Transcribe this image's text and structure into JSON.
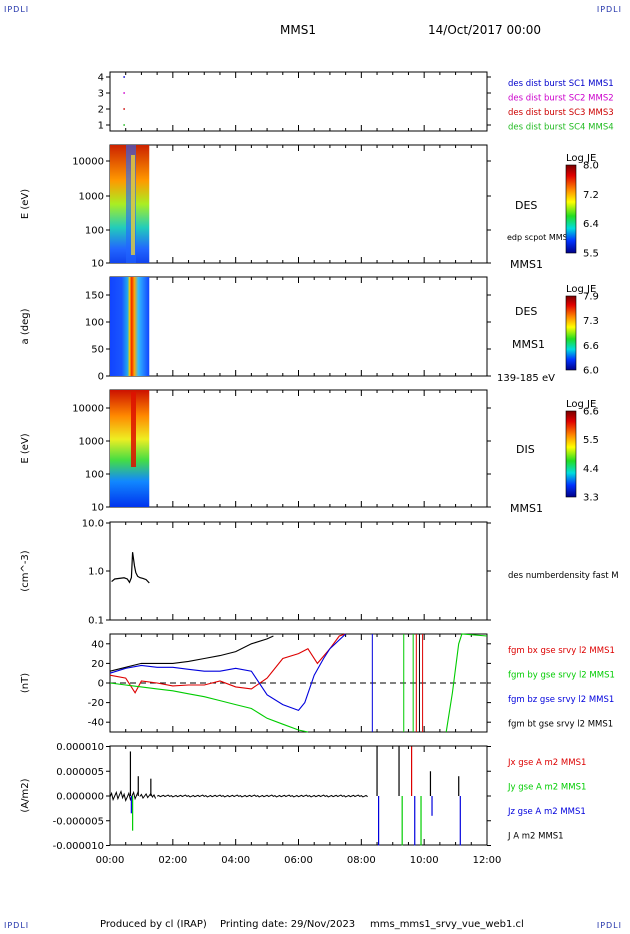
{
  "header": {
    "corner_tl": "IPDLI",
    "corner_tr": "IPDLI",
    "spacecraft": "MMS1",
    "date": "14/Oct/2017 00:00"
  },
  "footer": {
    "produced": "Produced by cl (IRAP)",
    "printing": "Printing date: 29/Nov/2023",
    "file": "mms_mms1_srvy_vue_web1.cl",
    "corner_bl": "IPDLI",
    "corner_br": "IPDLI"
  },
  "chart_data": [
    {
      "type": "scatter",
      "panel": "availability",
      "yticks": [
        "1",
        "2",
        "3",
        "4"
      ],
      "series": [
        {
          "name": "des dist burst SC1 MMS1",
          "color": "#0000cc",
          "x_hours": [
            0.45
          ],
          "y": [
            4
          ]
        },
        {
          "name": "des dist burst SC2 MMS2",
          "color": "#cc00cc",
          "x_hours": [
            0.45
          ],
          "y": [
            3
          ]
        },
        {
          "name": "des dist burst SC3 MMS3",
          "color": "#cc0000",
          "x_hours": [
            0.45
          ],
          "y": [
            2
          ]
        },
        {
          "name": "des dist burst SC4 MMS4",
          "color": "#22bb22",
          "x_hours": [
            0.45
          ],
          "y": [
            1
          ]
        }
      ]
    },
    {
      "type": "heatmap",
      "panel": "des-energy",
      "ylabel": "E (eV)",
      "yticks": [
        "10000",
        "1000",
        "100",
        "10"
      ],
      "right_labels": [
        "DES",
        "edp scpot MMS1",
        "MMS1"
      ],
      "colorbar": {
        "title": "Log JE",
        "ticks": [
          "8.0",
          "7.2",
          "6.4",
          "5.5"
        ]
      },
      "data_span_hours": [
        0.0,
        1.25
      ]
    },
    {
      "type": "heatmap",
      "panel": "des-pitch",
      "ylabel": "a (deg)",
      "yticks": [
        "150",
        "100",
        "50",
        "0"
      ],
      "right_labels": [
        "DES",
        "MMS1",
        "139-185 eV"
      ],
      "colorbar": {
        "title": "Log JE",
        "ticks": [
          "7.9",
          "7.3",
          "6.6",
          "6.0"
        ]
      },
      "data_span_hours": [
        0.0,
        1.25
      ]
    },
    {
      "type": "heatmap",
      "panel": "dis-energy",
      "ylabel": "E (eV)",
      "yticks": [
        "10000",
        "1000",
        "100",
        "10"
      ],
      "right_labels": [
        "DIS",
        "MMS1"
      ],
      "colorbar": {
        "title": "Log JE",
        "ticks": [
          "6.6",
          "5.5",
          "4.4",
          "3.3"
        ]
      },
      "data_span_hours": [
        0.0,
        1.25
      ]
    },
    {
      "type": "line",
      "panel": "density",
      "ylabel": "(cm^-3)",
      "yticks": [
        "10.0",
        "1.0",
        "0.1"
      ],
      "series": [
        {
          "name": "des numberdensity fast M",
          "color": "#000000",
          "x_hours": [
            0.05,
            0.15,
            0.3,
            0.45,
            0.55,
            0.62,
            0.68,
            0.72,
            0.78,
            0.82,
            0.88,
            0.95,
            1.05,
            1.15,
            1.25
          ],
          "y": [
            0.62,
            0.7,
            0.72,
            0.74,
            0.7,
            0.6,
            0.75,
            2.5,
            1.3,
            0.95,
            0.8,
            0.75,
            0.72,
            0.68,
            0.58
          ]
        }
      ]
    },
    {
      "type": "line",
      "panel": "fgm",
      "ylabel": "(nT)",
      "yticks": [
        "40",
        "20",
        "0",
        "-20",
        "-40"
      ],
      "ylim": [
        -50,
        50
      ],
      "series": [
        {
          "name": "fgm bx gse srvy l2 MMS1",
          "color": "#dd0000",
          "x_hours": [
            0,
            0.5,
            0.8,
            1,
            1.5,
            2,
            2.5,
            3,
            3.5,
            4,
            4.5,
            5,
            5.5,
            6,
            6.3,
            6.6,
            7,
            7.3,
            7.5
          ],
          "y": [
            8,
            5,
            -10,
            2,
            0,
            -3,
            -2,
            -2,
            2,
            -4,
            -6,
            5,
            25,
            30,
            35,
            20,
            35,
            48,
            50
          ]
        },
        {
          "name": "fgm by gse srvy l2 MMS1",
          "color": "#00cc00",
          "x_hours": [
            0,
            0.5,
            1,
            1.5,
            2,
            2.5,
            3,
            3.5,
            4,
            4.5,
            4.8,
            5,
            5.5,
            6,
            6.3
          ],
          "y": [
            0,
            -2,
            -4,
            -6,
            -8,
            -11,
            -14,
            -18,
            -22,
            -26,
            -32,
            -36,
            -42,
            -48,
            -50
          ]
        },
        {
          "name": "fgm bz gse srvy l2 MMS1",
          "color": "#0000dd",
          "x_hours": [
            0,
            0.5,
            1,
            1.5,
            2,
            2.5,
            3,
            3.5,
            4,
            4.5,
            5,
            5.5,
            6,
            6.2,
            6.5,
            6.8,
            7,
            7.5
          ],
          "y": [
            10,
            15,
            18,
            16,
            16,
            14,
            12,
            12,
            15,
            12,
            -12,
            -22,
            -28,
            -20,
            8,
            25,
            35,
            50
          ]
        },
        {
          "name": "fgm bt gse srvy l2 MMS1",
          "color": "#000000",
          "x_hours": [
            0,
            0.5,
            1,
            1.5,
            2,
            2.5,
            3,
            3.5,
            4,
            4.5,
            5,
            5.2
          ],
          "y": [
            12,
            16,
            20,
            20,
            20,
            22,
            25,
            28,
            32,
            40,
            45,
            48
          ]
        }
      ]
    },
    {
      "type": "line",
      "panel": "current",
      "ylabel": "(A/m2)",
      "yticks": [
        "0.000010",
        "0.000005",
        "0.000000",
        "-0.000005",
        "-0.000010"
      ],
      "ylim": [
        -1e-05,
        1e-05
      ],
      "series": [
        {
          "name": "Jx gse A m2 MMS1",
          "color": "#dd0000"
        },
        {
          "name": "Jy gse A m2 MMS1",
          "color": "#00cc00"
        },
        {
          "name": "Jz gse A m2 MMS1",
          "color": "#0000dd"
        },
        {
          "name": "J A m2 MMS1",
          "color": "#000000"
        }
      ]
    },
    {
      "type": "axis",
      "panel": "time-axis",
      "xticks": [
        "00:00",
        "02:00",
        "04:00",
        "06:00",
        "08:00",
        "10:00",
        "12:00"
      ],
      "xlim_hours": [
        0,
        12
      ]
    }
  ]
}
